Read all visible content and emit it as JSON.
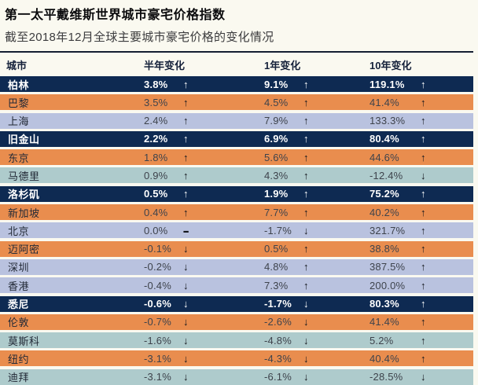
{
  "chart_data": {
    "type": "table",
    "title": "第一太平戴维斯世界城市豪宅价格指数",
    "subtitle": "截至2018年12月全球主要城市豪宅价格的变化情况",
    "columns": [
      "城市",
      "半年变化",
      "1年变化",
      "10年变化"
    ],
    "rows": [
      {
        "city": "柏林",
        "half_year": "3.8%",
        "half_year_dir": "up",
        "one_year": "9.1%",
        "one_year_dir": "up",
        "ten_year": "119.1%",
        "ten_year_dir": "up",
        "theme": "navy"
      },
      {
        "city": "巴黎",
        "half_year": "3.5%",
        "half_year_dir": "up",
        "one_year": "4.5%",
        "one_year_dir": "up",
        "ten_year": "41.4%",
        "ten_year_dir": "up",
        "theme": "orange"
      },
      {
        "city": "上海",
        "half_year": "2.4%",
        "half_year_dir": "up",
        "one_year": "7.9%",
        "one_year_dir": "up",
        "ten_year": "133.3%",
        "ten_year_dir": "up",
        "theme": "lavender"
      },
      {
        "city": "旧金山",
        "half_year": "2.2%",
        "half_year_dir": "up",
        "one_year": "6.9%",
        "one_year_dir": "up",
        "ten_year": "80.4%",
        "ten_year_dir": "up",
        "theme": "navy"
      },
      {
        "city": "东京",
        "half_year": "1.8%",
        "half_year_dir": "up",
        "one_year": "5.6%",
        "one_year_dir": "up",
        "ten_year": "44.6%",
        "ten_year_dir": "up",
        "theme": "orange"
      },
      {
        "city": "马德里",
        "half_year": "0.9%",
        "half_year_dir": "up",
        "one_year": "4.3%",
        "one_year_dir": "up",
        "ten_year": "-12.4%",
        "ten_year_dir": "down",
        "theme": "teal"
      },
      {
        "city": "洛杉矶",
        "half_year": "0.5%",
        "half_year_dir": "up",
        "one_year": "1.9%",
        "one_year_dir": "up",
        "ten_year": "75.2%",
        "ten_year_dir": "up",
        "theme": "navy"
      },
      {
        "city": "新加坡",
        "half_year": "0.4%",
        "half_year_dir": "up",
        "one_year": "7.7%",
        "one_year_dir": "up",
        "ten_year": "40.2%",
        "ten_year_dir": "up",
        "theme": "orange"
      },
      {
        "city": "北京",
        "half_year": "0.0%",
        "half_year_dir": "flat",
        "one_year": "-1.7%",
        "one_year_dir": "down",
        "ten_year": "321.7%",
        "ten_year_dir": "up",
        "theme": "lavender"
      },
      {
        "city": "迈阿密",
        "half_year": "-0.1%",
        "half_year_dir": "down",
        "one_year": "0.5%",
        "one_year_dir": "up",
        "ten_year": "38.8%",
        "ten_year_dir": "up",
        "theme": "orange"
      },
      {
        "city": "深圳",
        "half_year": "-0.2%",
        "half_year_dir": "down",
        "one_year": "4.8%",
        "one_year_dir": "up",
        "ten_year": "387.5%",
        "ten_year_dir": "up",
        "theme": "lavender"
      },
      {
        "city": "香港",
        "half_year": "-0.4%",
        "half_year_dir": "down",
        "one_year": "7.3%",
        "one_year_dir": "up",
        "ten_year": "200.0%",
        "ten_year_dir": "up",
        "theme": "lavender"
      },
      {
        "city": "悉尼",
        "half_year": "-0.6%",
        "half_year_dir": "down",
        "one_year": "-1.7%",
        "one_year_dir": "down",
        "ten_year": "80.3%",
        "ten_year_dir": "up",
        "theme": "navy"
      },
      {
        "city": "伦敦",
        "half_year": "-0.7%",
        "half_year_dir": "down",
        "one_year": "-2.6%",
        "one_year_dir": "down",
        "ten_year": "41.4%",
        "ten_year_dir": "up",
        "theme": "orange"
      },
      {
        "city": "莫斯科",
        "half_year": "-1.6%",
        "half_year_dir": "down",
        "one_year": "-4.8%",
        "one_year_dir": "down",
        "ten_year": "5.2%",
        "ten_year_dir": "up",
        "theme": "teal"
      },
      {
        "city": "纽约",
        "half_year": "-3.1%",
        "half_year_dir": "down",
        "one_year": "-4.3%",
        "one_year_dir": "down",
        "ten_year": "40.4%",
        "ten_year_dir": "up",
        "theme": "orange"
      },
      {
        "city": "迪拜",
        "half_year": "-3.1%",
        "half_year_dir": "down",
        "one_year": "-6.1%",
        "one_year_dir": "down",
        "ten_year": "-28.5%",
        "ten_year_dir": "down",
        "theme": "teal"
      }
    ]
  },
  "arrows": {
    "up": "↑",
    "down": "↓",
    "flat": "–"
  },
  "colors": {
    "navy": "#0e2a52",
    "orange": "#e98d4e",
    "lavender": "#b9c2df",
    "teal": "#aecbcc",
    "rule": "#141e32",
    "background": "#faf9f0"
  }
}
